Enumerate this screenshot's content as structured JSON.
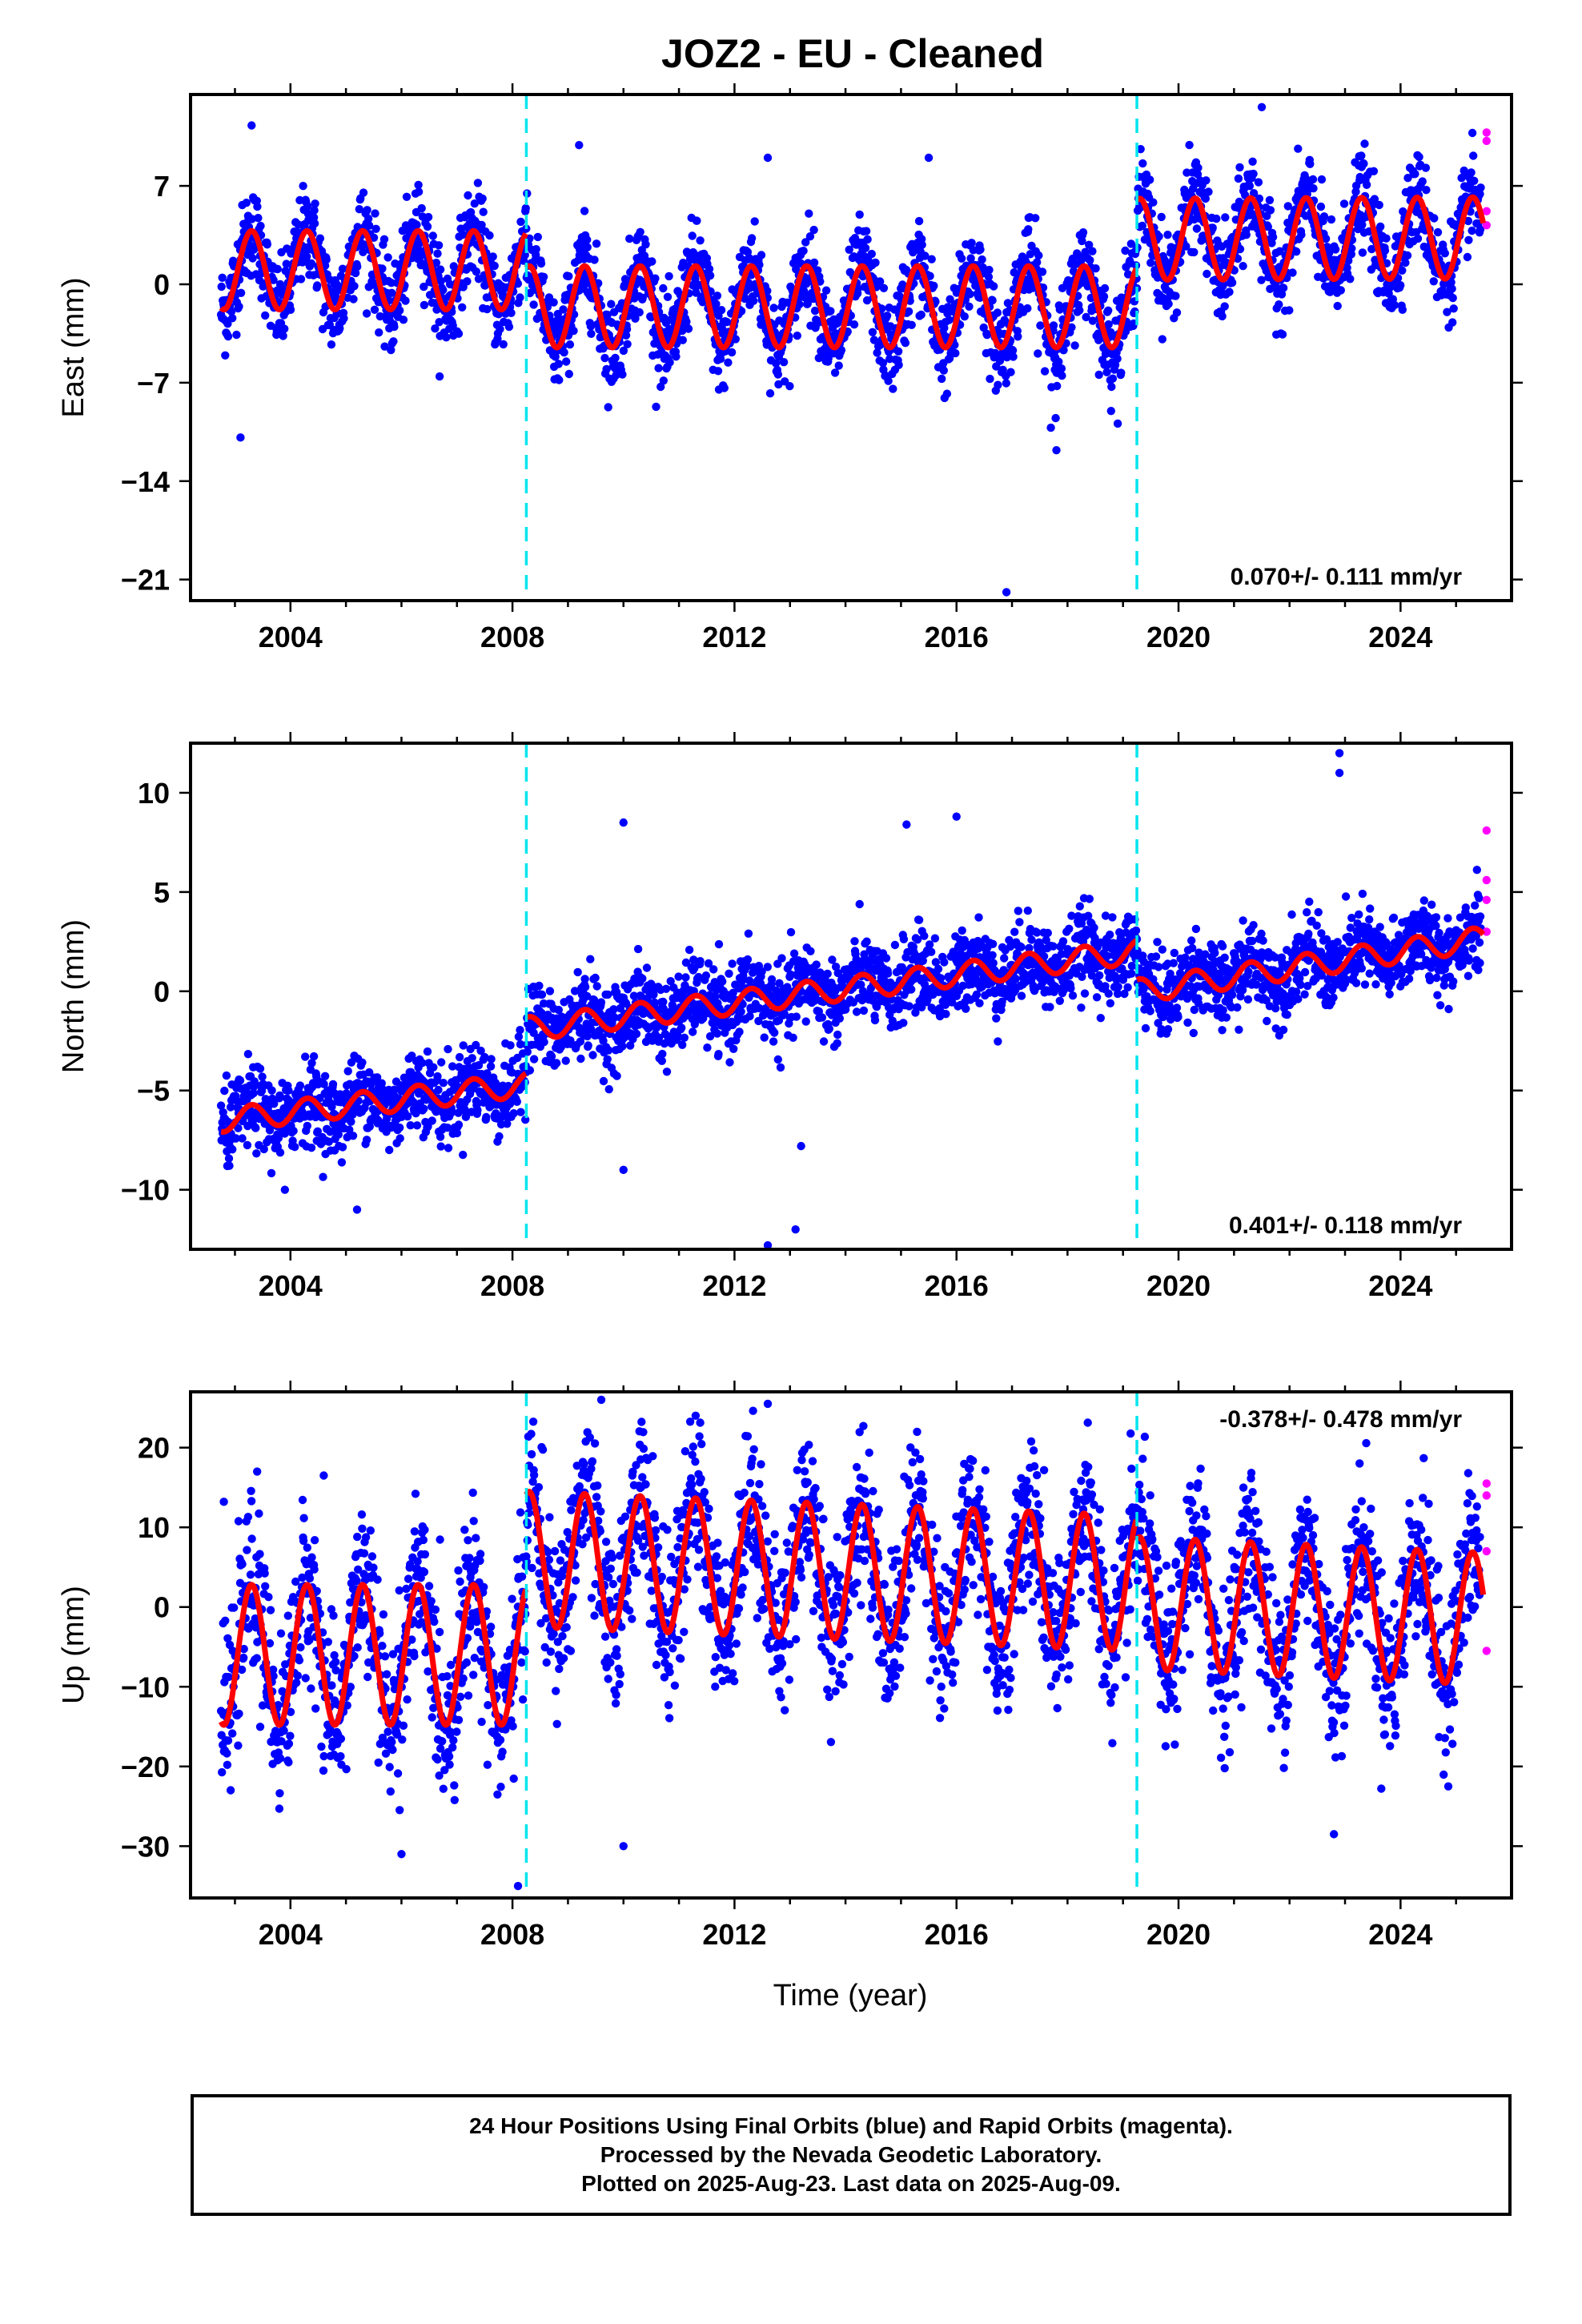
{
  "title": "JOZ2  - EU - Cleaned",
  "x_axis_label": "Time (year)",
  "footer_lines": [
    "24 Hour Positions Using Final Orbits (blue) and Rapid Orbits (magenta).",
    "Processed by the Nevada Geodetic Laboratory.",
    "Plotted on 2025-Aug-23. Last data on 2025-Aug-09."
  ],
  "colors": {
    "final_orbits": "#0000ff",
    "rapid_orbits": "#ff00ff",
    "model": "#ff0000",
    "offsets": "#00e5ee"
  },
  "chart_data": [
    {
      "type": "scatter",
      "ylabel": "East (mm)",
      "rate": "0.070+/- 0.111 mm/yr",
      "xlim": [
        2002.2,
        2026.0
      ],
      "ylim": [
        -22.5,
        13.5
      ],
      "xticks": [
        2004,
        2008,
        2012,
        2016,
        2020,
        2024
      ],
      "yticks": [
        7,
        0,
        -7,
        -14,
        -21
      ],
      "ytick_labels": [
        "7",
        "0",
        "−7",
        "−14",
        "−21"
      ],
      "offsets": [
        2008.25,
        2019.25
      ],
      "data_start": 2002.75,
      "data_end": 2025.45,
      "model_segments": [
        {
          "x0": 2002.75,
          "x1": 2008.25,
          "base0": 1.0,
          "base1": 1.0,
          "amp": 2.8
        },
        {
          "x0": 2008.25,
          "x1": 2019.25,
          "base0": -1.6,
          "base1": -1.6,
          "amp": 2.9
        },
        {
          "x0": 2019.25,
          "x1": 2025.6,
          "base0": 3.2,
          "base1": 3.3,
          "amp": 2.9
        }
      ],
      "scatter": 1.6,
      "rapid_points": [
        {
          "x": 2025.55,
          "y": 10.8
        },
        {
          "x": 2025.55,
          "y": 10.2
        },
        {
          "x": 2025.55,
          "y": 5.2
        },
        {
          "x": 2025.55,
          "y": 4.2
        }
      ],
      "outliers": [
        {
          "x": 2003.3,
          "y": 11.3
        },
        {
          "x": 2003.1,
          "y": -10.9
        },
        {
          "x": 2009.2,
          "y": 9.9
        },
        {
          "x": 2016.9,
          "y": -21.9
        },
        {
          "x": 2017.8,
          "y": -11.8
        },
        {
          "x": 2021.5,
          "y": 12.6
        },
        {
          "x": 2017.7,
          "y": -10.2
        },
        {
          "x": 2012.6,
          "y": 9.0
        },
        {
          "x": 2015.5,
          "y": 9.0
        }
      ]
    },
    {
      "type": "scatter",
      "ylabel": "North (mm)",
      "rate": "0.401+/- 0.118 mm/yr",
      "xlim": [
        2002.2,
        2026.0
      ],
      "ylim": [
        -13.0,
        12.5
      ],
      "xticks": [
        2004,
        2008,
        2012,
        2016,
        2020,
        2024
      ],
      "yticks": [
        10,
        5,
        0,
        -5,
        -10
      ],
      "ytick_labels": [
        "10",
        "5",
        "0",
        "−5",
        "−10"
      ],
      "offsets": [
        2008.25,
        2019.25
      ],
      "data_start": 2002.75,
      "data_end": 2025.45,
      "model_segments": [
        {
          "x0": 2002.75,
          "x1": 2008.25,
          "base0": -6.5,
          "base1": -4.7,
          "amp": 0.6
        },
        {
          "x0": 2008.25,
          "x1": 2019.25,
          "base0": -1.9,
          "base1": 2.0,
          "amp": 0.6
        },
        {
          "x0": 2019.25,
          "x1": 2025.6,
          "base0": 0.0,
          "base1": 2.7,
          "amp": 0.6
        }
      ],
      "scatter": 1.0,
      "rapid_points": [
        {
          "x": 2025.55,
          "y": 8.1
        },
        {
          "x": 2025.55,
          "y": 5.6
        },
        {
          "x": 2025.55,
          "y": 4.6
        },
        {
          "x": 2025.55,
          "y": 3.0
        }
      ],
      "outliers": [
        {
          "x": 2022.9,
          "y": 12.0
        },
        {
          "x": 2022.9,
          "y": 11.0
        },
        {
          "x": 2013.1,
          "y": -12.0
        },
        {
          "x": 2012.6,
          "y": -12.8
        },
        {
          "x": 2013.2,
          "y": -7.8
        },
        {
          "x": 2005.2,
          "y": -11.0
        },
        {
          "x": 2010.0,
          "y": 8.5
        },
        {
          "x": 2016.0,
          "y": 8.8
        },
        {
          "x": 2015.1,
          "y": 8.4
        },
        {
          "x": 2003.9,
          "y": -10.0
        },
        {
          "x": 2010.0,
          "y": -9.0
        }
      ]
    },
    {
      "type": "scatter",
      "ylabel": "Up (mm)",
      "rate": "-0.378+/- 0.478 mm/yr",
      "xlim": [
        2002.2,
        2026.0
      ],
      "ylim": [
        -36.5,
        27.0
      ],
      "xticks": [
        2004,
        2008,
        2012,
        2016,
        2020,
        2024
      ],
      "yticks": [
        20,
        10,
        0,
        -10,
        -20,
        -30
      ],
      "ytick_labels": [
        "20",
        "10",
        "0",
        "−10",
        "−20",
        "−30"
      ],
      "offsets": [
        2008.25,
        2019.25
      ],
      "data_start": 2002.75,
      "data_end": 2025.45,
      "model_segments": [
        {
          "x0": 2002.75,
          "x1": 2008.25,
          "base0": -6.0,
          "base1": -6.0,
          "amp": 8.8
        },
        {
          "x0": 2008.25,
          "x1": 2019.25,
          "base0": 6.0,
          "base1": 3.0,
          "amp": 8.5
        },
        {
          "x0": 2019.25,
          "x1": 2025.6,
          "base0": 0.5,
          "base1": -1.5,
          "amp": 8.3
        }
      ],
      "scatter": 5.0,
      "rapid_points": [
        {
          "x": 2025.55,
          "y": 15.5
        },
        {
          "x": 2025.55,
          "y": 14.0
        },
        {
          "x": 2025.55,
          "y": 7.0
        },
        {
          "x": 2025.55,
          "y": -5.5
        }
      ],
      "outliers": [
        {
          "x": 2009.6,
          "y": 26.0
        },
        {
          "x": 2012.6,
          "y": 25.5
        },
        {
          "x": 2008.1,
          "y": -35.0
        },
        {
          "x": 2010.0,
          "y": -30.0
        },
        {
          "x": 2022.8,
          "y": -28.5
        },
        {
          "x": 2006.0,
          "y": -31.0
        },
        {
          "x": 2002.8,
          "y": 13.2
        },
        {
          "x": 2003.4,
          "y": 17.0
        },
        {
          "x": 2004.6,
          "y": 16.5
        }
      ]
    }
  ]
}
